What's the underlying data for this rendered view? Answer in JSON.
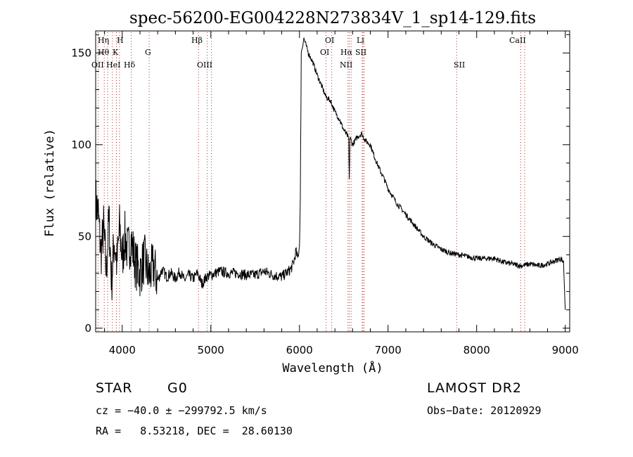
{
  "chart_data": {
    "type": "line",
    "title": "spec-56200-EG004228N273834V_1_sp14-129.fits",
    "xlabel": "Wavelength (Å)",
    "ylabel": "Flux (relative)",
    "xlim": [
      3700,
      9050
    ],
    "ylim": [
      -2,
      162
    ],
    "xticks": [
      4000,
      5000,
      6000,
      7000,
      8000,
      9000
    ],
    "yticks": [
      0,
      50,
      100,
      150
    ],
    "grid": false,
    "series": [
      {
        "color": "#000000",
        "x": [
          3700,
          3730,
          3760,
          3790,
          3820,
          3850,
          3880,
          3910,
          3940,
          3970,
          4000,
          4030,
          4060,
          4100,
          4150,
          4200,
          4250,
          4300,
          4350,
          4400,
          4450,
          4500,
          4550,
          4600,
          4650,
          4700,
          4750,
          4800,
          4850,
          4900,
          4950,
          5000,
          5100,
          5200,
          5300,
          5400,
          5500,
          5600,
          5700,
          5800,
          5850,
          5900,
          5920,
          5940,
          5960,
          5980,
          6000,
          6010,
          6020,
          6050,
          6100,
          6150,
          6200,
          6250,
          6300,
          6350,
          6400,
          6450,
          6500,
          6540,
          6555,
          6562,
          6570,
          6600,
          6650,
          6700,
          6750,
          6800,
          6850,
          6900,
          6950,
          7000,
          7100,
          7200,
          7300,
          7400,
          7500,
          7600,
          7700,
          7800,
          7900,
          8000,
          8100,
          8200,
          8300,
          8400,
          8500,
          8600,
          8700,
          8800,
          8900,
          8950,
          8980,
          9000
        ],
        "y": [
          70,
          62,
          40,
          55,
          30,
          60,
          25,
          48,
          35,
          55,
          38,
          50,
          42,
          48,
          35,
          30,
          38,
          28,
          34,
          26,
          32,
          28,
          30,
          27,
          31,
          26,
          29,
          27,
          30,
          24,
          28,
          29,
          31,
          30,
          30,
          29,
          29,
          31,
          29,
          28,
          30,
          32,
          34,
          37,
          42,
          38,
          45,
          70,
          150,
          158,
          150,
          145,
          138,
          132,
          126,
          124,
          118,
          114,
          108,
          105,
          103,
          80,
          104,
          100,
          104,
          106,
          102,
          100,
          93,
          87,
          82,
          76,
          68,
          62,
          56,
          50,
          46,
          43,
          41,
          40,
          39,
          38,
          38,
          38,
          36,
          35,
          34,
          35,
          34,
          35,
          37,
          38,
          36,
          10
        ]
      }
    ],
    "lines_top": [
      "Hη",
      "H",
      "Hβ",
      "OI",
      "Li",
      "CaII"
    ],
    "lines_mid": [
      "Hθ",
      "K",
      "G",
      "OI",
      "Hα",
      "SII"
    ],
    "lines_low": [
      "OII",
      "HeI",
      "Hδ",
      "OIII",
      "NII",
      "SII"
    ],
    "line_positions": [
      3727,
      3797,
      3835,
      3889,
      3934,
      3969,
      4102,
      4304,
      4861,
      4959,
      5007,
      6300,
      6364,
      6548,
      6563,
      6583,
      6708,
      6717,
      6731,
      7774,
      8498,
      8542
    ]
  },
  "info": {
    "object_type": "STAR",
    "subclass": "G0",
    "survey": "LAMOST DR2",
    "cz": "cz = −40.0 ± −299792.5 km/s",
    "obs_date": "Obs−Date: 20120929",
    "coords": "RA =   8.53218, DEC =  28.60130"
  },
  "colors": {
    "spectrum": "#000000",
    "line_markers": "#b03030",
    "axes": "#000000"
  }
}
